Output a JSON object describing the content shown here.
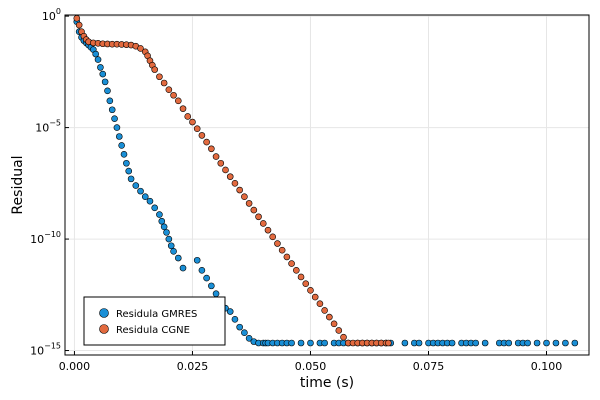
{
  "chart_data": {
    "type": "scatter",
    "xlabel": "time (s)",
    "ylabel": "Residual",
    "xlim": [
      -0.002,
      0.109
    ],
    "ylim_log10": [
      -15.2,
      0.05
    ],
    "y_scale": "log",
    "x_ticks": [
      {
        "value": 0.0,
        "label": "0.000"
      },
      {
        "value": 0.025,
        "label": "0.025"
      },
      {
        "value": 0.05,
        "label": "0.050"
      },
      {
        "value": 0.075,
        "label": "0.075"
      },
      {
        "value": 0.1,
        "label": "0.100"
      }
    ],
    "y_ticks": [
      {
        "exp": 0,
        "base": "10",
        "sup": "0"
      },
      {
        "exp": -5,
        "base": "10",
        "sup": "−5"
      },
      {
        "exp": -10,
        "base": "10",
        "sup": "−10"
      },
      {
        "exp": -15,
        "base": "10",
        "sup": "−15"
      }
    ],
    "grid": true,
    "legend_position": "bottom-left",
    "series": [
      {
        "name": "Residula GMRES",
        "color": "#1a8fd6",
        "points": [
          [
            0.0005,
            -0.25
          ],
          [
            0.001,
            -0.7
          ],
          [
            0.0015,
            -0.95
          ],
          [
            0.002,
            -1.1
          ],
          [
            0.0025,
            -1.2
          ],
          [
            0.003,
            -1.3
          ],
          [
            0.0035,
            -1.4
          ],
          [
            0.004,
            -1.5
          ],
          [
            0.0045,
            -1.7
          ],
          [
            0.005,
            -1.95
          ],
          [
            0.0055,
            -2.3
          ],
          [
            0.006,
            -2.6
          ],
          [
            0.0065,
            -2.95
          ],
          [
            0.007,
            -3.35
          ],
          [
            0.0075,
            -3.8
          ],
          [
            0.008,
            -4.2
          ],
          [
            0.0085,
            -4.6
          ],
          [
            0.009,
            -5.0
          ],
          [
            0.0095,
            -5.4
          ],
          [
            0.01,
            -5.8
          ],
          [
            0.0105,
            -6.2
          ],
          [
            0.011,
            -6.6
          ],
          [
            0.0115,
            -6.95
          ],
          [
            0.012,
            -7.3
          ],
          [
            0.013,
            -7.6
          ],
          [
            0.014,
            -7.85
          ],
          [
            0.015,
            -8.1
          ],
          [
            0.016,
            -8.3
          ],
          [
            0.017,
            -8.6
          ],
          [
            0.018,
            -8.9
          ],
          [
            0.0185,
            -9.2
          ],
          [
            0.019,
            -9.45
          ],
          [
            0.0195,
            -9.7
          ],
          [
            0.02,
            -10.0
          ],
          [
            0.0205,
            -10.3
          ],
          [
            0.021,
            -10.55
          ],
          [
            0.022,
            -10.85
          ],
          [
            0.023,
            -11.3
          ],
          [
            0.026,
            -10.95
          ],
          [
            0.027,
            -11.4
          ],
          [
            0.028,
            -11.75
          ],
          [
            0.029,
            -12.1
          ],
          [
            0.03,
            -12.45
          ],
          [
            0.031,
            -12.8
          ],
          [
            0.032,
            -13.1
          ],
          [
            0.033,
            -13.25
          ],
          [
            0.034,
            -13.6
          ],
          [
            0.035,
            -13.95
          ],
          [
            0.036,
            -14.2
          ],
          [
            0.037,
            -14.45
          ],
          [
            0.038,
            -14.6
          ],
          [
            0.039,
            -14.8
          ],
          [
            0.04,
            -15.1
          ],
          [
            0.0405,
            -14.7
          ],
          [
            0.041,
            -14.9
          ],
          [
            0.042,
            -15.0
          ],
          [
            0.043,
            -15.1
          ],
          [
            0.044,
            -15.2
          ],
          [
            0.045,
            -15.2
          ],
          [
            0.046,
            -15.2
          ],
          [
            0.048,
            -15.2
          ],
          [
            0.05,
            -15.2
          ],
          [
            0.052,
            -15.15
          ],
          [
            0.053,
            -15.2
          ],
          [
            0.055,
            -15.25
          ],
          [
            0.056,
            -15.2
          ],
          [
            0.057,
            -15.15
          ],
          [
            0.058,
            -15.2
          ],
          [
            0.06,
            -15.15
          ],
          [
            0.061,
            -15.2
          ],
          [
            0.062,
            -15.15
          ],
          [
            0.063,
            -15.2
          ],
          [
            0.064,
            -15.15
          ],
          [
            0.065,
            -15.2
          ],
          [
            0.066,
            -15.15
          ],
          [
            0.067,
            -15.2
          ],
          [
            0.07,
            -15.2
          ],
          [
            0.072,
            -15.1
          ],
          [
            0.073,
            -15.15
          ],
          [
            0.075,
            -15.2
          ],
          [
            0.076,
            -15.15
          ],
          [
            0.077,
            -15.2
          ],
          [
            0.078,
            -15.2
          ],
          [
            0.079,
            -15.2
          ],
          [
            0.08,
            -15.15
          ],
          [
            0.082,
            -15.2
          ],
          [
            0.083,
            -15.15
          ],
          [
            0.084,
            -15.2
          ],
          [
            0.085,
            -15.2
          ],
          [
            0.087,
            -15.15
          ],
          [
            0.09,
            -15.1
          ],
          [
            0.091,
            -15.15
          ],
          [
            0.092,
            -15.2
          ],
          [
            0.094,
            -15.1
          ],
          [
            0.095,
            -15.15
          ],
          [
            0.096,
            -15.2
          ],
          [
            0.098,
            -15.2
          ],
          [
            0.1,
            -15.15
          ],
          [
            0.102,
            -15.2
          ],
          [
            0.104,
            -15.15
          ],
          [
            0.106,
            -15.2
          ]
        ]
      },
      {
        "name": "Residula CGNE",
        "color": "#e26a3f",
        "points": [
          [
            0.0005,
            -0.1
          ],
          [
            0.001,
            -0.4
          ],
          [
            0.0015,
            -0.7
          ],
          [
            0.002,
            -0.9
          ],
          [
            0.0025,
            -1.05
          ],
          [
            0.003,
            -1.15
          ],
          [
            0.004,
            -1.2
          ],
          [
            0.005,
            -1.22
          ],
          [
            0.006,
            -1.24
          ],
          [
            0.007,
            -1.25
          ],
          [
            0.008,
            -1.26
          ],
          [
            0.009,
            -1.26
          ],
          [
            0.01,
            -1.27
          ],
          [
            0.011,
            -1.28
          ],
          [
            0.012,
            -1.3
          ],
          [
            0.013,
            -1.35
          ],
          [
            0.014,
            -1.45
          ],
          [
            0.015,
            -1.6
          ],
          [
            0.0155,
            -1.78
          ],
          [
            0.016,
            -2.0
          ],
          [
            0.0165,
            -2.2
          ],
          [
            0.017,
            -2.4
          ],
          [
            0.018,
            -2.72
          ],
          [
            0.019,
            -3.0
          ],
          [
            0.02,
            -3.3
          ],
          [
            0.021,
            -3.55
          ],
          [
            0.022,
            -3.8
          ],
          [
            0.023,
            -4.15
          ],
          [
            0.024,
            -4.5
          ],
          [
            0.025,
            -4.75
          ],
          [
            0.026,
            -5.05
          ],
          [
            0.027,
            -5.35
          ],
          [
            0.028,
            -5.65
          ],
          [
            0.029,
            -5.95
          ],
          [
            0.03,
            -6.3
          ],
          [
            0.031,
            -6.6
          ],
          [
            0.032,
            -6.9
          ],
          [
            0.033,
            -7.2
          ],
          [
            0.034,
            -7.5
          ],
          [
            0.035,
            -7.8
          ],
          [
            0.036,
            -8.1
          ],
          [
            0.037,
            -8.4
          ],
          [
            0.038,
            -8.7
          ],
          [
            0.039,
            -9.0
          ],
          [
            0.04,
            -9.3
          ],
          [
            0.041,
            -9.6
          ],
          [
            0.042,
            -9.9
          ],
          [
            0.043,
            -10.2
          ],
          [
            0.044,
            -10.5
          ],
          [
            0.045,
            -10.8
          ],
          [
            0.046,
            -11.1
          ],
          [
            0.047,
            -11.4
          ],
          [
            0.048,
            -11.7
          ],
          [
            0.049,
            -12.0
          ],
          [
            0.05,
            -12.3
          ],
          [
            0.051,
            -12.6
          ],
          [
            0.052,
            -12.9
          ],
          [
            0.053,
            -13.2
          ],
          [
            0.054,
            -13.5
          ],
          [
            0.055,
            -13.8
          ],
          [
            0.056,
            -14.1
          ],
          [
            0.057,
            -14.4
          ],
          [
            0.058,
            -14.7
          ],
          [
            0.059,
            -14.95
          ],
          [
            0.06,
            -15.2
          ],
          [
            0.061,
            -15.5
          ],
          [
            0.062,
            -15.75
          ],
          [
            0.063,
            -16.1
          ],
          [
            0.064,
            -16.45
          ],
          [
            0.065,
            -16.8
          ],
          [
            0.066,
            -17.2
          ],
          [
            0.0665,
            -17.4
          ]
        ]
      }
    ]
  }
}
